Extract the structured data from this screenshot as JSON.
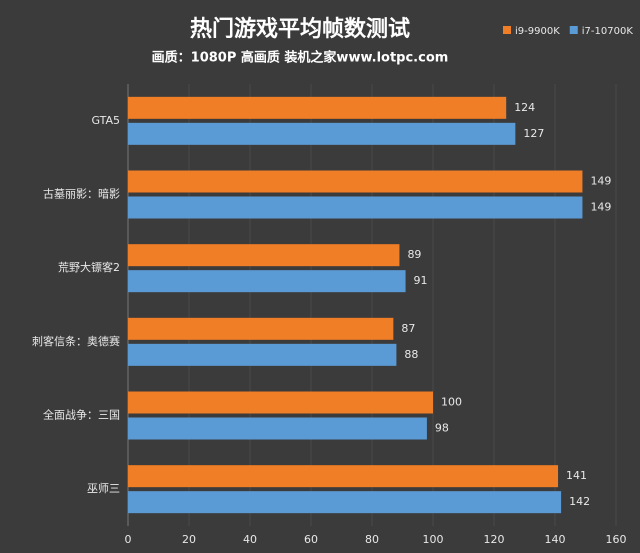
{
  "chart_data": {
    "type": "barh",
    "title": "热门游戏平均帧数测试",
    "subtitle": "画质：1080P 高画质 装机之家www.lotpc.com",
    "categories": [
      "GTA5",
      "古墓丽影：暗影",
      "荒野大镖客2",
      "刺客信条：奥德赛",
      "全面战争：三国",
      "巫师三"
    ],
    "series": [
      {
        "name": "i9-9900K",
        "color": "#f07e26",
        "values": [
          124,
          149,
          89,
          87,
          100,
          141
        ]
      },
      {
        "name": "i7-10700K",
        "color": "#5b9bd5",
        "values": [
          127,
          149,
          91,
          88,
          98,
          142
        ]
      }
    ],
    "xlim": [
      0,
      160
    ],
    "xticks": [
      0,
      20,
      40,
      60,
      80,
      100,
      120,
      140,
      160
    ],
    "grid": true
  }
}
